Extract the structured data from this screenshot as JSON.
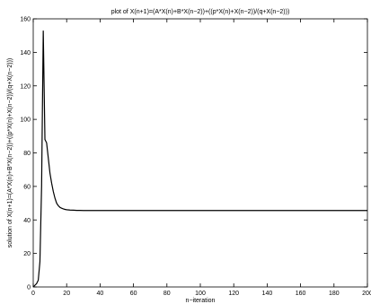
{
  "chart_data": {
    "type": "line",
    "title": "plot of X(n+1)=(A*X(n)+B*X(n−2))+((p*X(n)+X(n−2))/(q+X(n−2)))",
    "xlabel": "n−iteration",
    "ylabel": "solution of  X(n+1)=(A*X(n)+B*X(n−2))+((p*X(n)+X(n−2))/(q+X(n−2)))",
    "xlim": [
      0,
      200
    ],
    "ylim": [
      0,
      160
    ],
    "xticks": [
      0,
      20,
      40,
      60,
      80,
      100,
      120,
      140,
      160,
      180,
      200
    ],
    "yticks": [
      0,
      20,
      40,
      60,
      80,
      100,
      120,
      140,
      160
    ],
    "grid": false,
    "line_color": "#000000",
    "series": [
      {
        "x": [
          0,
          1,
          2,
          3,
          4,
          5,
          6,
          7,
          8,
          9,
          10,
          11,
          12,
          13,
          14,
          15,
          16,
          17,
          18,
          19,
          20,
          22,
          24,
          26,
          28,
          30,
          35,
          40,
          50,
          60,
          80,
          100,
          120,
          140,
          160,
          180,
          200
        ],
        "y": [
          0,
          1,
          2,
          4,
          15,
          60,
          153,
          88,
          86,
          77,
          68,
          62,
          57,
          53,
          50,
          48.5,
          47.5,
          47,
          46.6,
          46.3,
          46.1,
          45.9,
          45.8,
          45.7,
          45.7,
          45.6,
          45.6,
          45.6,
          45.6,
          45.6,
          45.6,
          45.6,
          45.6,
          45.6,
          45.6,
          45.6,
          45.6
        ]
      }
    ]
  }
}
